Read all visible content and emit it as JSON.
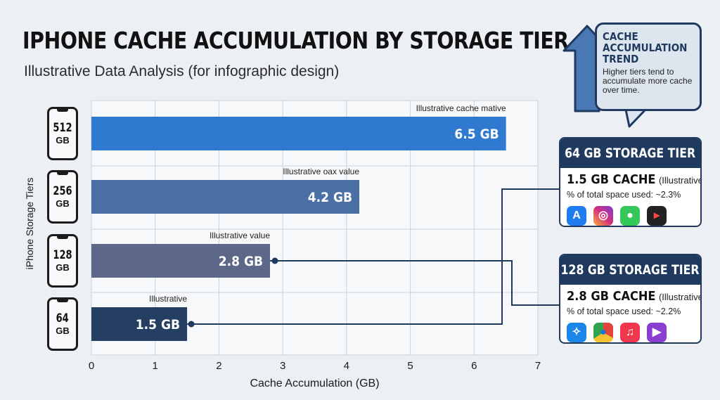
{
  "title": "IPHONE CACHE ACCUMULATION BY STORAGE TIER",
  "subtitle": "Illustrative Data Analysis (for infographic design)",
  "chart_data": {
    "type": "bar",
    "orientation": "horizontal",
    "categories": [
      "512 GB",
      "256 GB",
      "128 GB",
      "64 GB"
    ],
    "values": [
      6.5,
      4.2,
      2.8,
      1.5
    ],
    "value_labels": [
      "6.5 GB",
      "4.2 GB",
      "2.8 GB",
      "1.5 GB"
    ],
    "annotations": [
      "Illustrative cache mative",
      "Illustrative oax value",
      "Illustrative value",
      "Illustrative"
    ],
    "bar_colors": [
      "#2f7ad0",
      "#4a6fa5",
      "#5d6788",
      "#253f63"
    ],
    "xlabel": "Cache Accumulation (GB)",
    "ylabel": "iPhone Storage Tiers",
    "xlim": [
      0,
      7
    ],
    "xticks": [
      "0",
      "1",
      "2",
      "3",
      "4",
      "5",
      "6",
      "7"
    ],
    "grid": true
  },
  "tiers": [
    {
      "num": "512",
      "unit": "GB"
    },
    {
      "num": "256",
      "unit": "GB"
    },
    {
      "num": "128",
      "unit": "GB"
    },
    {
      "num": "64",
      "unit": "GB"
    }
  ],
  "trend": {
    "title_lines": [
      "CACHE",
      "ACCUMULATION",
      "TREND"
    ],
    "description": "Higher tiers tend to accumulate more cache over time."
  },
  "cards": [
    {
      "header": "64 GB STORAGE TIER",
      "cache_value": "1.5 GB CACHE",
      "cache_note": "(Illustrative)",
      "percent": "% of total space used: ~2.3%",
      "apps": [
        {
          "icon": "app-store-icon",
          "glyph": "A",
          "color": "#1e7cf0"
        },
        {
          "icon": "instagram-icon",
          "glyph": "◎",
          "color": "#d62f7c"
        },
        {
          "icon": "messages-icon",
          "glyph": "●",
          "color": "#34c759"
        },
        {
          "icon": "video-app-icon",
          "glyph": "▸",
          "color": "#222222"
        }
      ]
    },
    {
      "header": "128 GB STORAGE TIER",
      "cache_value": "2.8 GB CACHE",
      "cache_note": "(Illustrative)",
      "percent": "% of total space used: ~2.2%",
      "apps": [
        {
          "icon": "safari-icon",
          "glyph": "✧",
          "color": "#1c86e8"
        },
        {
          "icon": "chrome-icon",
          "glyph": "●",
          "color": "#e0443a"
        },
        {
          "icon": "music-icon",
          "glyph": "♫",
          "color": "#f2364e"
        },
        {
          "icon": "video-editor-icon",
          "glyph": "▶",
          "color": "#8a3fd1"
        }
      ]
    }
  ],
  "colors": {
    "accent": "#1f3a5e",
    "background": "#ecf0f4",
    "grid": "#c9d2dc"
  }
}
